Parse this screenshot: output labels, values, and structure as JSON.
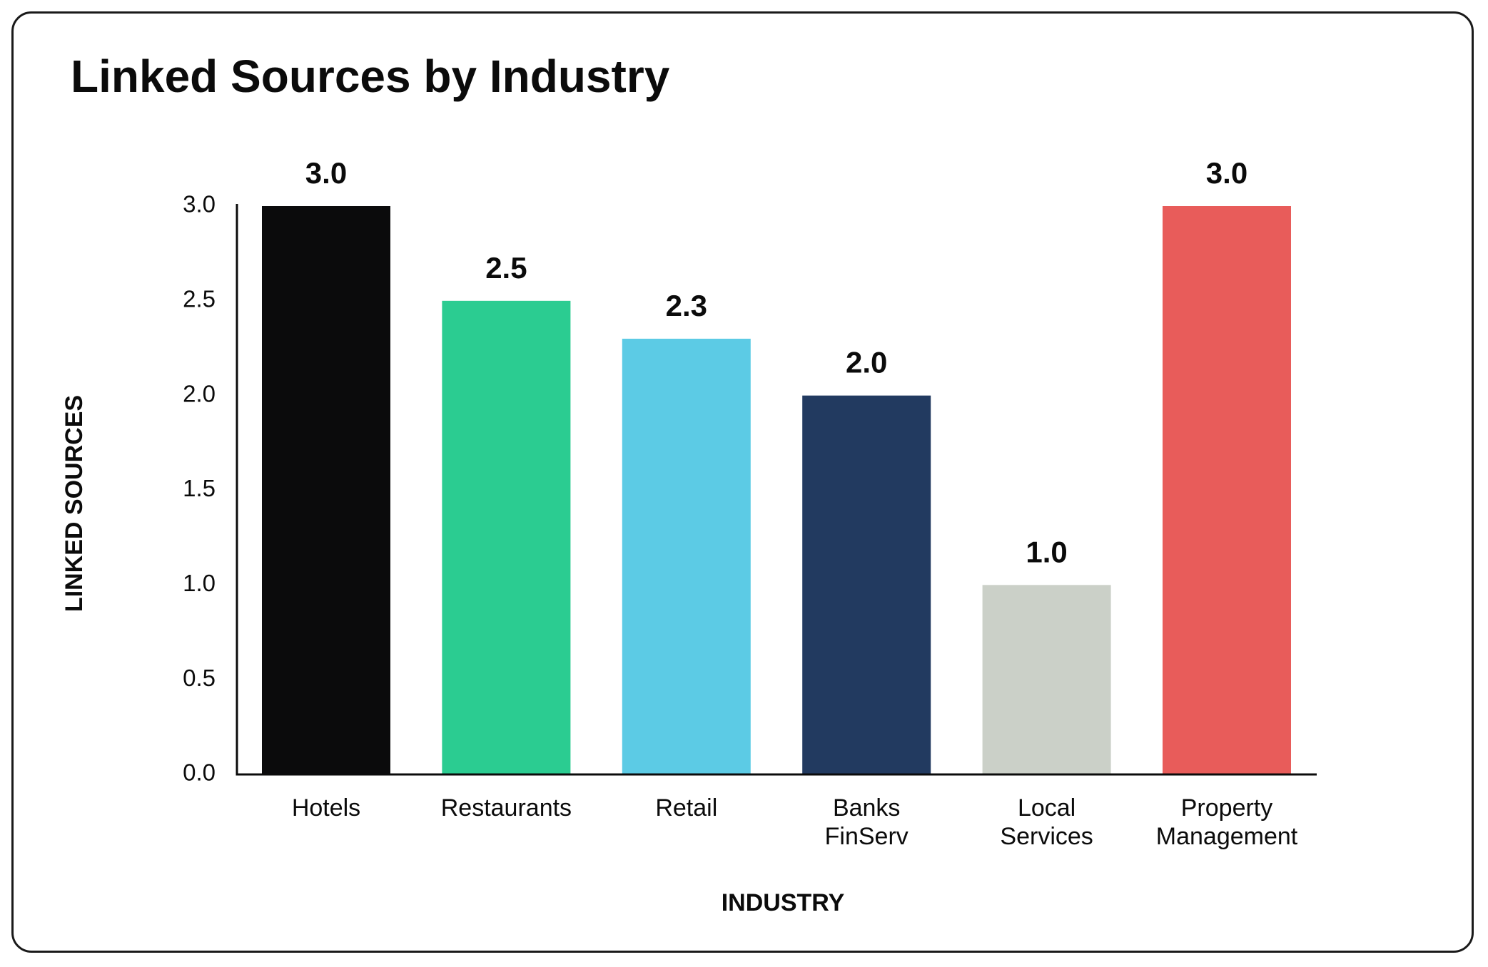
{
  "chart_data": {
    "type": "bar",
    "title": "Linked Sources by Industry",
    "xlabel": "INDUSTRY",
    "ylabel": "LINKED SOURCES",
    "categories": [
      "Hotels",
      "Restaurants",
      "Retail",
      "Banks FinServ",
      "Local Services",
      "Property Management"
    ],
    "category_lines": [
      [
        "Hotels"
      ],
      [
        "Restaurants"
      ],
      [
        "Retail"
      ],
      [
        "Banks",
        "FinServ"
      ],
      [
        "Local",
        "Services"
      ],
      [
        "Property",
        "Management"
      ]
    ],
    "values": [
      3.0,
      2.5,
      2.3,
      2.0,
      1.0,
      3.0
    ],
    "value_labels": [
      "3.0",
      "2.5",
      "2.3",
      "2.0",
      "1.0",
      "3.0"
    ],
    "colors": [
      "#0b0b0c",
      "#2bcc91",
      "#5ccbe5",
      "#223a60",
      "#cbd0c8",
      "#e85c5a"
    ],
    "ylim": [
      0,
      3.0
    ],
    "yticks": [
      0.0,
      0.5,
      1.0,
      1.5,
      2.0,
      2.5,
      3.0
    ],
    "ytick_labels": [
      "0.0",
      "0.5",
      "1.0",
      "1.5",
      "2.0",
      "2.5",
      "3.0"
    ],
    "grid": false,
    "legend": "none"
  }
}
